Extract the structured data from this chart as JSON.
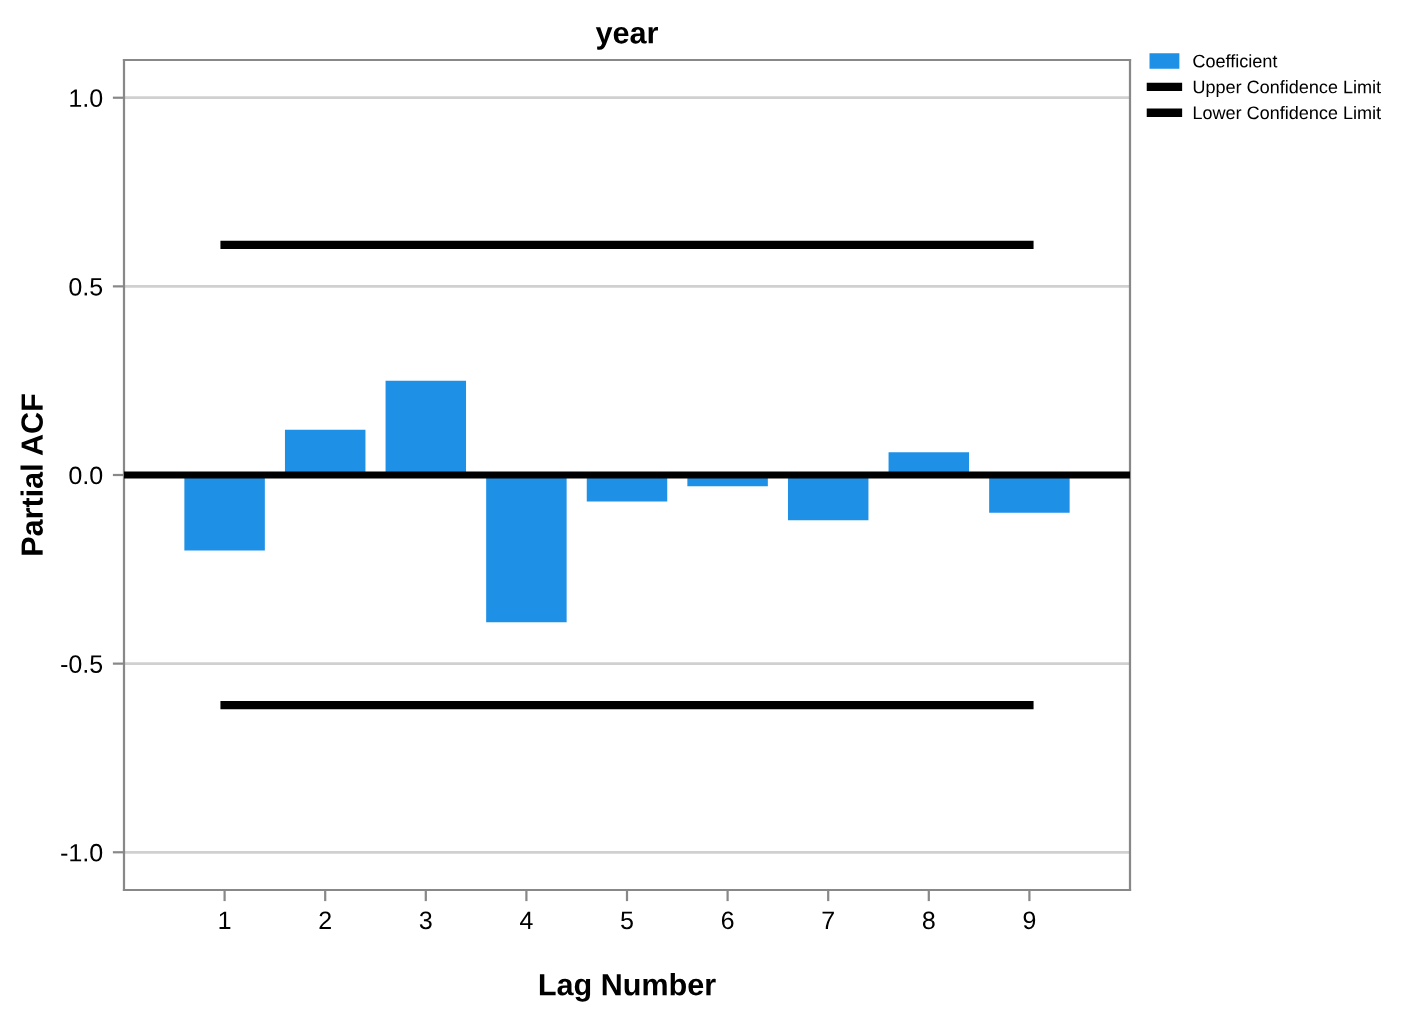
{
  "chart_data": {
    "type": "bar",
    "title": "year",
    "xlabel": "Lag Number",
    "ylabel": "Partial ACF",
    "categories": [
      "1",
      "2",
      "3",
      "4",
      "5",
      "6",
      "7",
      "8",
      "9"
    ],
    "series": [
      {
        "name": "Coefficient",
        "color": "#1e90e6",
        "values": [
          -0.2,
          0.12,
          0.25,
          -0.39,
          -0.07,
          -0.03,
          -0.12,
          0.06,
          -0.1
        ]
      },
      {
        "name": "Upper Confidence Limit",
        "type": "line",
        "color": "#000000",
        "values": [
          0.61,
          0.61,
          0.61,
          0.61,
          0.61,
          0.61,
          0.61,
          0.61,
          0.61
        ]
      },
      {
        "name": "Lower Confidence Limit",
        "type": "line",
        "color": "#000000",
        "values": [
          -0.61,
          -0.61,
          -0.61,
          -0.61,
          -0.61,
          -0.61,
          -0.61,
          -0.61,
          -0.61
        ]
      }
    ],
    "ylim": [
      -1.1,
      1.1
    ],
    "yticks": [
      {
        "value": -1,
        "label": "-1.0"
      },
      -0.5,
      {
        "value": 0,
        "label": "0.0"
      },
      0.5,
      {
        "value": 1,
        "label": "1.0"
      }
    ],
    "ref_lines": [
      {
        "axis": "y",
        "value": 0,
        "color": "#000000",
        "line_style": "solid"
      }
    ],
    "grid": "y",
    "legend": "top right",
    "marker": "none",
    "line_style": "solid"
  }
}
